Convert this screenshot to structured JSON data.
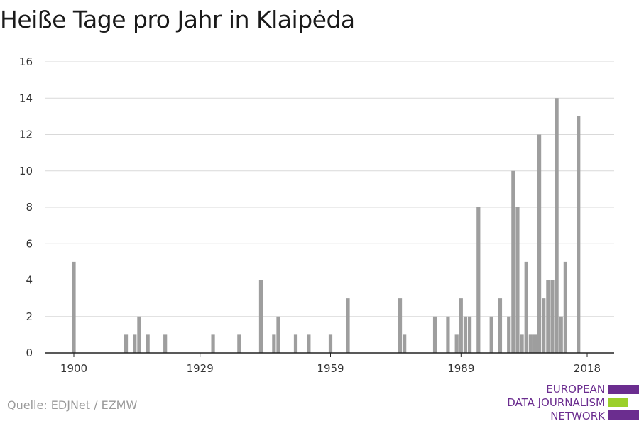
{
  "title": "Heiße Tage pro Jahr in Klaipėda",
  "source": "Quelle: EDJNet / EZMW",
  "logo": {
    "lines": [
      "EUROPEAN",
      "DATA JOURNALISM",
      "NETWORK"
    ],
    "colors": {
      "purple": "#6b2d8f",
      "green": "#9bd02a"
    }
  },
  "chart_data": {
    "type": "bar",
    "title": "Heiße Tage pro Jahr in Klaipėda",
    "xlabel": "",
    "ylabel": "",
    "xlim": [
      1900,
      2018
    ],
    "ylim": [
      0,
      16
    ],
    "yticks": [
      0,
      2,
      4,
      6,
      8,
      10,
      12,
      14,
      16
    ],
    "xticks": [
      1900,
      1929,
      1959,
      1989,
      2018
    ],
    "grid": true,
    "bar_color": "#9e9e9e",
    "x": [
      1900,
      1912,
      1914,
      1915,
      1917,
      1921,
      1932,
      1938,
      1943,
      1946,
      1947,
      1951,
      1954,
      1959,
      1963,
      1975,
      1976,
      1983,
      1986,
      1988,
      1989,
      1990,
      1991,
      1993,
      1996,
      1998,
      2000,
      2001,
      2002,
      2003,
      2004,
      2005,
      2006,
      2007,
      2008,
      2009,
      2010,
      2011,
      2012,
      2013,
      2014,
      2016
    ],
    "values": [
      5,
      1,
      1,
      2,
      1,
      1,
      1,
      1,
      4,
      1,
      2,
      1,
      1,
      1,
      3,
      3,
      1,
      2,
      2,
      1,
      3,
      2,
      2,
      8,
      2,
      3,
      2,
      10,
      8,
      1,
      5,
      1,
      1,
      12,
      3,
      4,
      4,
      14,
      2,
      5,
      0,
      13
    ]
  }
}
